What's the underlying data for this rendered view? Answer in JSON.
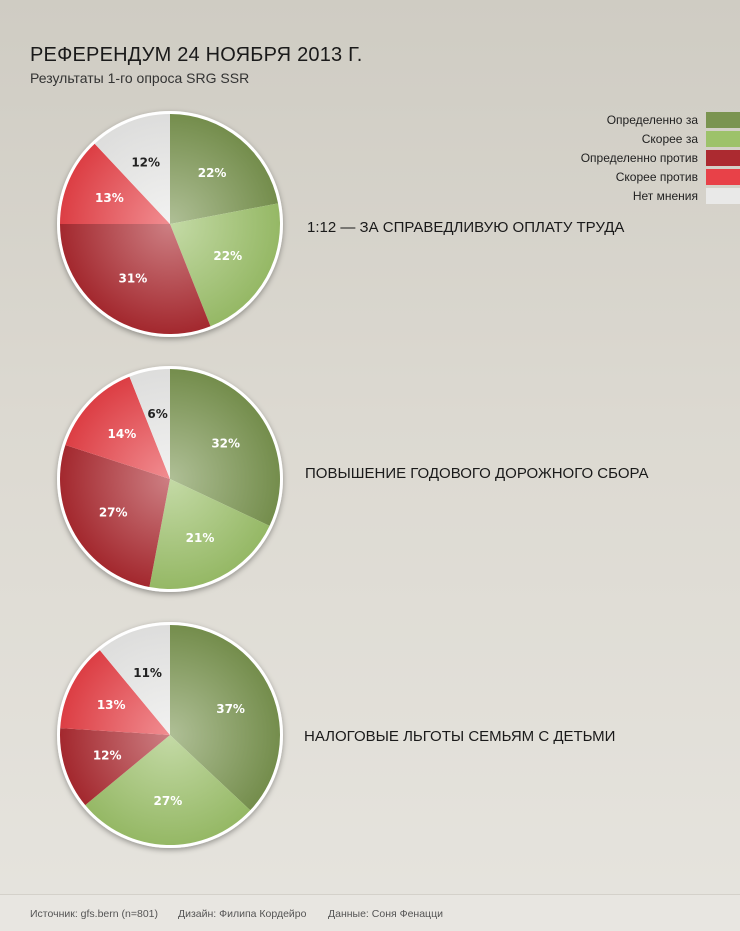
{
  "title": "РЕФЕРЕНДУМ 24 НОЯБРЯ 2013 Г.",
  "subtitle": "Результаты 1-го опроса SRG SSR",
  "legend": [
    {
      "label": "Определенно за",
      "color": "#7a9450"
    },
    {
      "label": "Скорее за",
      "color": "#9dc26a"
    },
    {
      "label": "Определенно против",
      "color": "#ac2a30"
    },
    {
      "label": "Скорее против",
      "color": "#e84148"
    },
    {
      "label": "Нет мнения",
      "color": "#e9e9e8"
    }
  ],
  "chart_data": [
    {
      "type": "pie",
      "title": "1:12 — ЗА СПРАВЕДЛИВУЮ ОПЛАТУ ТРУДА",
      "categories": [
        "Определенно за",
        "Скорее за",
        "Определенно против",
        "Скорее против",
        "Нет мнения"
      ],
      "values": [
        22,
        22,
        31,
        13,
        12
      ],
      "value_labels": [
        "22%",
        "22%",
        "31%",
        "13%",
        "12%"
      ]
    },
    {
      "type": "pie",
      "title": "ПОВЫШЕНИЕ ГОДОВОГО ДОРОЖНОГО СБОРА",
      "categories": [
        "Определенно за",
        "Скорее за",
        "Определенно против",
        "Скорее против",
        "Нет мнения"
      ],
      "values": [
        32,
        21,
        27,
        14,
        6
      ],
      "value_labels": [
        "32%",
        "21%",
        "27%",
        "14%",
        "6%"
      ]
    },
    {
      "type": "pie",
      "title": "НАЛОГОВЫЕ ЛЬГОТЫ СЕМЬЯМ С ДЕТЬМИ",
      "categories": [
        "Определенно за",
        "Скорее за",
        "Определенно против",
        "Скорее против",
        "Нет мнения"
      ],
      "values": [
        37,
        27,
        12,
        13,
        11
      ],
      "value_labels": [
        "37%",
        "27%",
        "12%",
        "13%",
        "11%"
      ]
    }
  ],
  "footer": {
    "source": "Источник: gfs.bern (n=801)",
    "design": "Дизайн: Филипа Кордейро",
    "data": "Данные: Соня Фенацци"
  }
}
